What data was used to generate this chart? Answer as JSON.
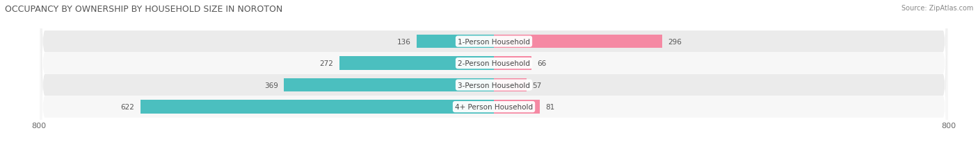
{
  "title": "OCCUPANCY BY OWNERSHIP BY HOUSEHOLD SIZE IN NOROTON",
  "source": "Source: ZipAtlas.com",
  "categories": [
    "1-Person Household",
    "2-Person Household",
    "3-Person Household",
    "4+ Person Household"
  ],
  "owner_values": [
    136,
    272,
    369,
    622
  ],
  "renter_values": [
    296,
    66,
    57,
    81
  ],
  "owner_color": "#4BBFBF",
  "renter_color": "#F589A3",
  "row_bg_even": "#EBEBEB",
  "row_bg_odd": "#F7F7F7",
  "axis_min": -800,
  "axis_max": 800,
  "x_tick_labels": [
    "800",
    "800"
  ],
  "label_fontsize": 8,
  "title_fontsize": 9,
  "source_fontsize": 7,
  "legend_fontsize": 8,
  "value_fontsize": 7.5,
  "category_fontsize": 7.5,
  "figsize": [
    14.06,
    2.32
  ],
  "dpi": 100
}
